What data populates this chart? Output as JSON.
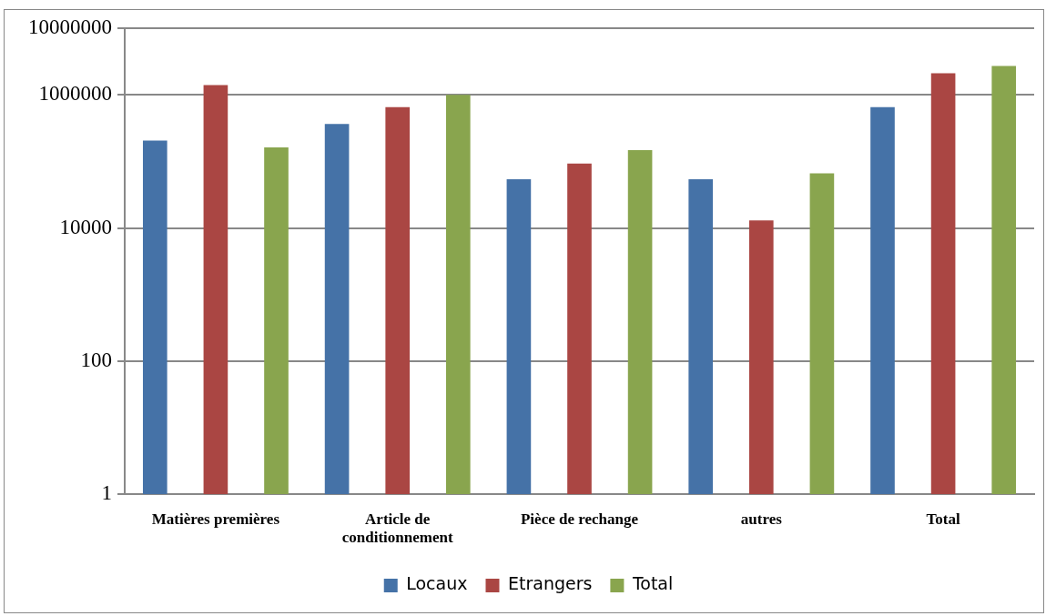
{
  "chart_data": {
    "type": "bar",
    "categories": [
      "Matières premières",
      "Article de conditionnement",
      "Pièce de rechange",
      "autres",
      "Total"
    ],
    "series": [
      {
        "name": "Locaux",
        "color": "#4572a7",
        "values": [
          205000,
          363000,
          54000,
          54000,
          650000
        ]
      },
      {
        "name": "Etrangers",
        "color": "#aa4643",
        "values": [
          1400000,
          650000,
          93000,
          13000,
          2100000
        ]
      },
      {
        "name": "Total",
        "color": "#89a54e",
        "values": [
          162000,
          1000000,
          148000,
          66000,
          2700000
        ]
      }
    ],
    "log": true,
    "ylim": [
      1,
      10000000
    ],
    "yticks": [
      1,
      100,
      10000,
      1000000,
      10000000
    ],
    "grid": "y",
    "legend": "bottom"
  }
}
